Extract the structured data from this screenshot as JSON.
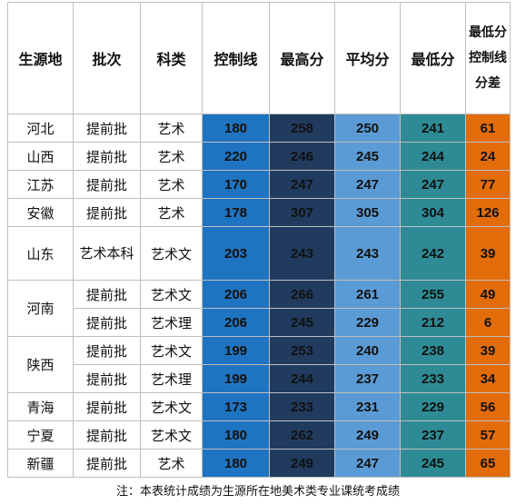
{
  "headers": [
    "生源地",
    "批次",
    "科类",
    "控制线",
    "最高分",
    "平均分",
    "最低分",
    "最低分控制线分差"
  ],
  "rows": [
    {
      "province": "河北",
      "batch": "提前批",
      "category": "艺术",
      "control": "180",
      "max": "258",
      "avg": "250",
      "min": "241",
      "gap": "61"
    },
    {
      "province": "山西",
      "batch": "提前批",
      "category": "艺术",
      "control": "220",
      "max": "246",
      "avg": "245",
      "min": "244",
      "gap": "24"
    },
    {
      "province": "江苏",
      "batch": "提前批",
      "category": "艺术",
      "control": "170",
      "max": "247",
      "avg": "247",
      "min": "247",
      "gap": "77"
    },
    {
      "province": "安徽",
      "batch": "提前批",
      "category": "艺术",
      "control": "178",
      "max": "307",
      "avg": "305",
      "min": "304",
      "gap": "126"
    },
    {
      "province": "山东",
      "batch": "艺术本科",
      "category": "艺术文",
      "control": "203",
      "max": "243",
      "avg": "243",
      "min": "242",
      "gap": "39"
    },
    {
      "province": "河南",
      "batch": "提前批",
      "category": "艺术文",
      "control": "206",
      "max": "266",
      "avg": "261",
      "min": "255",
      "gap": "49"
    },
    {
      "province": "",
      "batch": "提前批",
      "category": "艺术理",
      "control": "206",
      "max": "245",
      "avg": "229",
      "min": "212",
      "gap": "6"
    },
    {
      "province": "陕西",
      "batch": "提前批",
      "category": "艺术文",
      "control": "199",
      "max": "253",
      "avg": "240",
      "min": "238",
      "gap": "39"
    },
    {
      "province": "",
      "batch": "提前批",
      "category": "艺术理",
      "control": "199",
      "max": "244",
      "avg": "237",
      "min": "233",
      "gap": "34"
    },
    {
      "province": "青海",
      "batch": "提前批",
      "category": "艺术文",
      "control": "173",
      "max": "233",
      "avg": "231",
      "min": "229",
      "gap": "56"
    },
    {
      "province": "宁夏",
      "batch": "提前批",
      "category": "艺术文",
      "control": "180",
      "max": "262",
      "avg": "249",
      "min": "237",
      "gap": "57"
    },
    {
      "province": "新疆",
      "batch": "提前批",
      "category": "艺术",
      "control": "180",
      "max": "249",
      "avg": "247",
      "min": "245",
      "gap": "65"
    }
  ],
  "note": "注：本表统计成绩为生源所在地美术类专业课统考成绩",
  "colors": {
    "control": "#1f74c1",
    "max": "#203b5e",
    "avg": "#5b9bd5",
    "min": "#2e8b96",
    "gap": "#e36c0a"
  }
}
